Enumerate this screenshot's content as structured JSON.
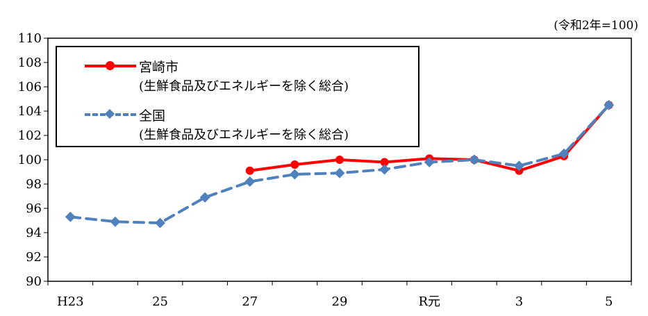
{
  "chart_data": {
    "type": "line",
    "note": "(令和2年=100)",
    "categories": [
      "H23",
      "",
      "25",
      "",
      "27",
      "",
      "29",
      "",
      "R元",
      "",
      "3",
      "",
      "5"
    ],
    "ylim": [
      90,
      110
    ],
    "ytick_labels": [
      "110",
      "108",
      "106",
      "104",
      "102",
      "100",
      "98",
      "96",
      "94",
      "92",
      "90"
    ],
    "grid": false,
    "legend_position": "top-left",
    "series": [
      {
        "name": "宮崎市",
        "name_sub": "(生鮮食品及びエネルギーを除く総合)",
        "color": "#ff0000",
        "style": "solid",
        "marker": "circle",
        "values": [
          null,
          null,
          null,
          null,
          99.1,
          99.6,
          100.0,
          99.8,
          100.1,
          100.0,
          99.1,
          100.3,
          104.5
        ]
      },
      {
        "name": "全国",
        "name_sub": "(生鮮食品及びエネルギーを除く総合)",
        "color": "#4f81bd",
        "style": "dashed",
        "marker": "diamond",
        "values": [
          95.3,
          94.9,
          94.8,
          96.9,
          98.2,
          98.8,
          98.9,
          99.2,
          99.8,
          100.0,
          99.5,
          100.5,
          104.5
        ]
      }
    ]
  }
}
